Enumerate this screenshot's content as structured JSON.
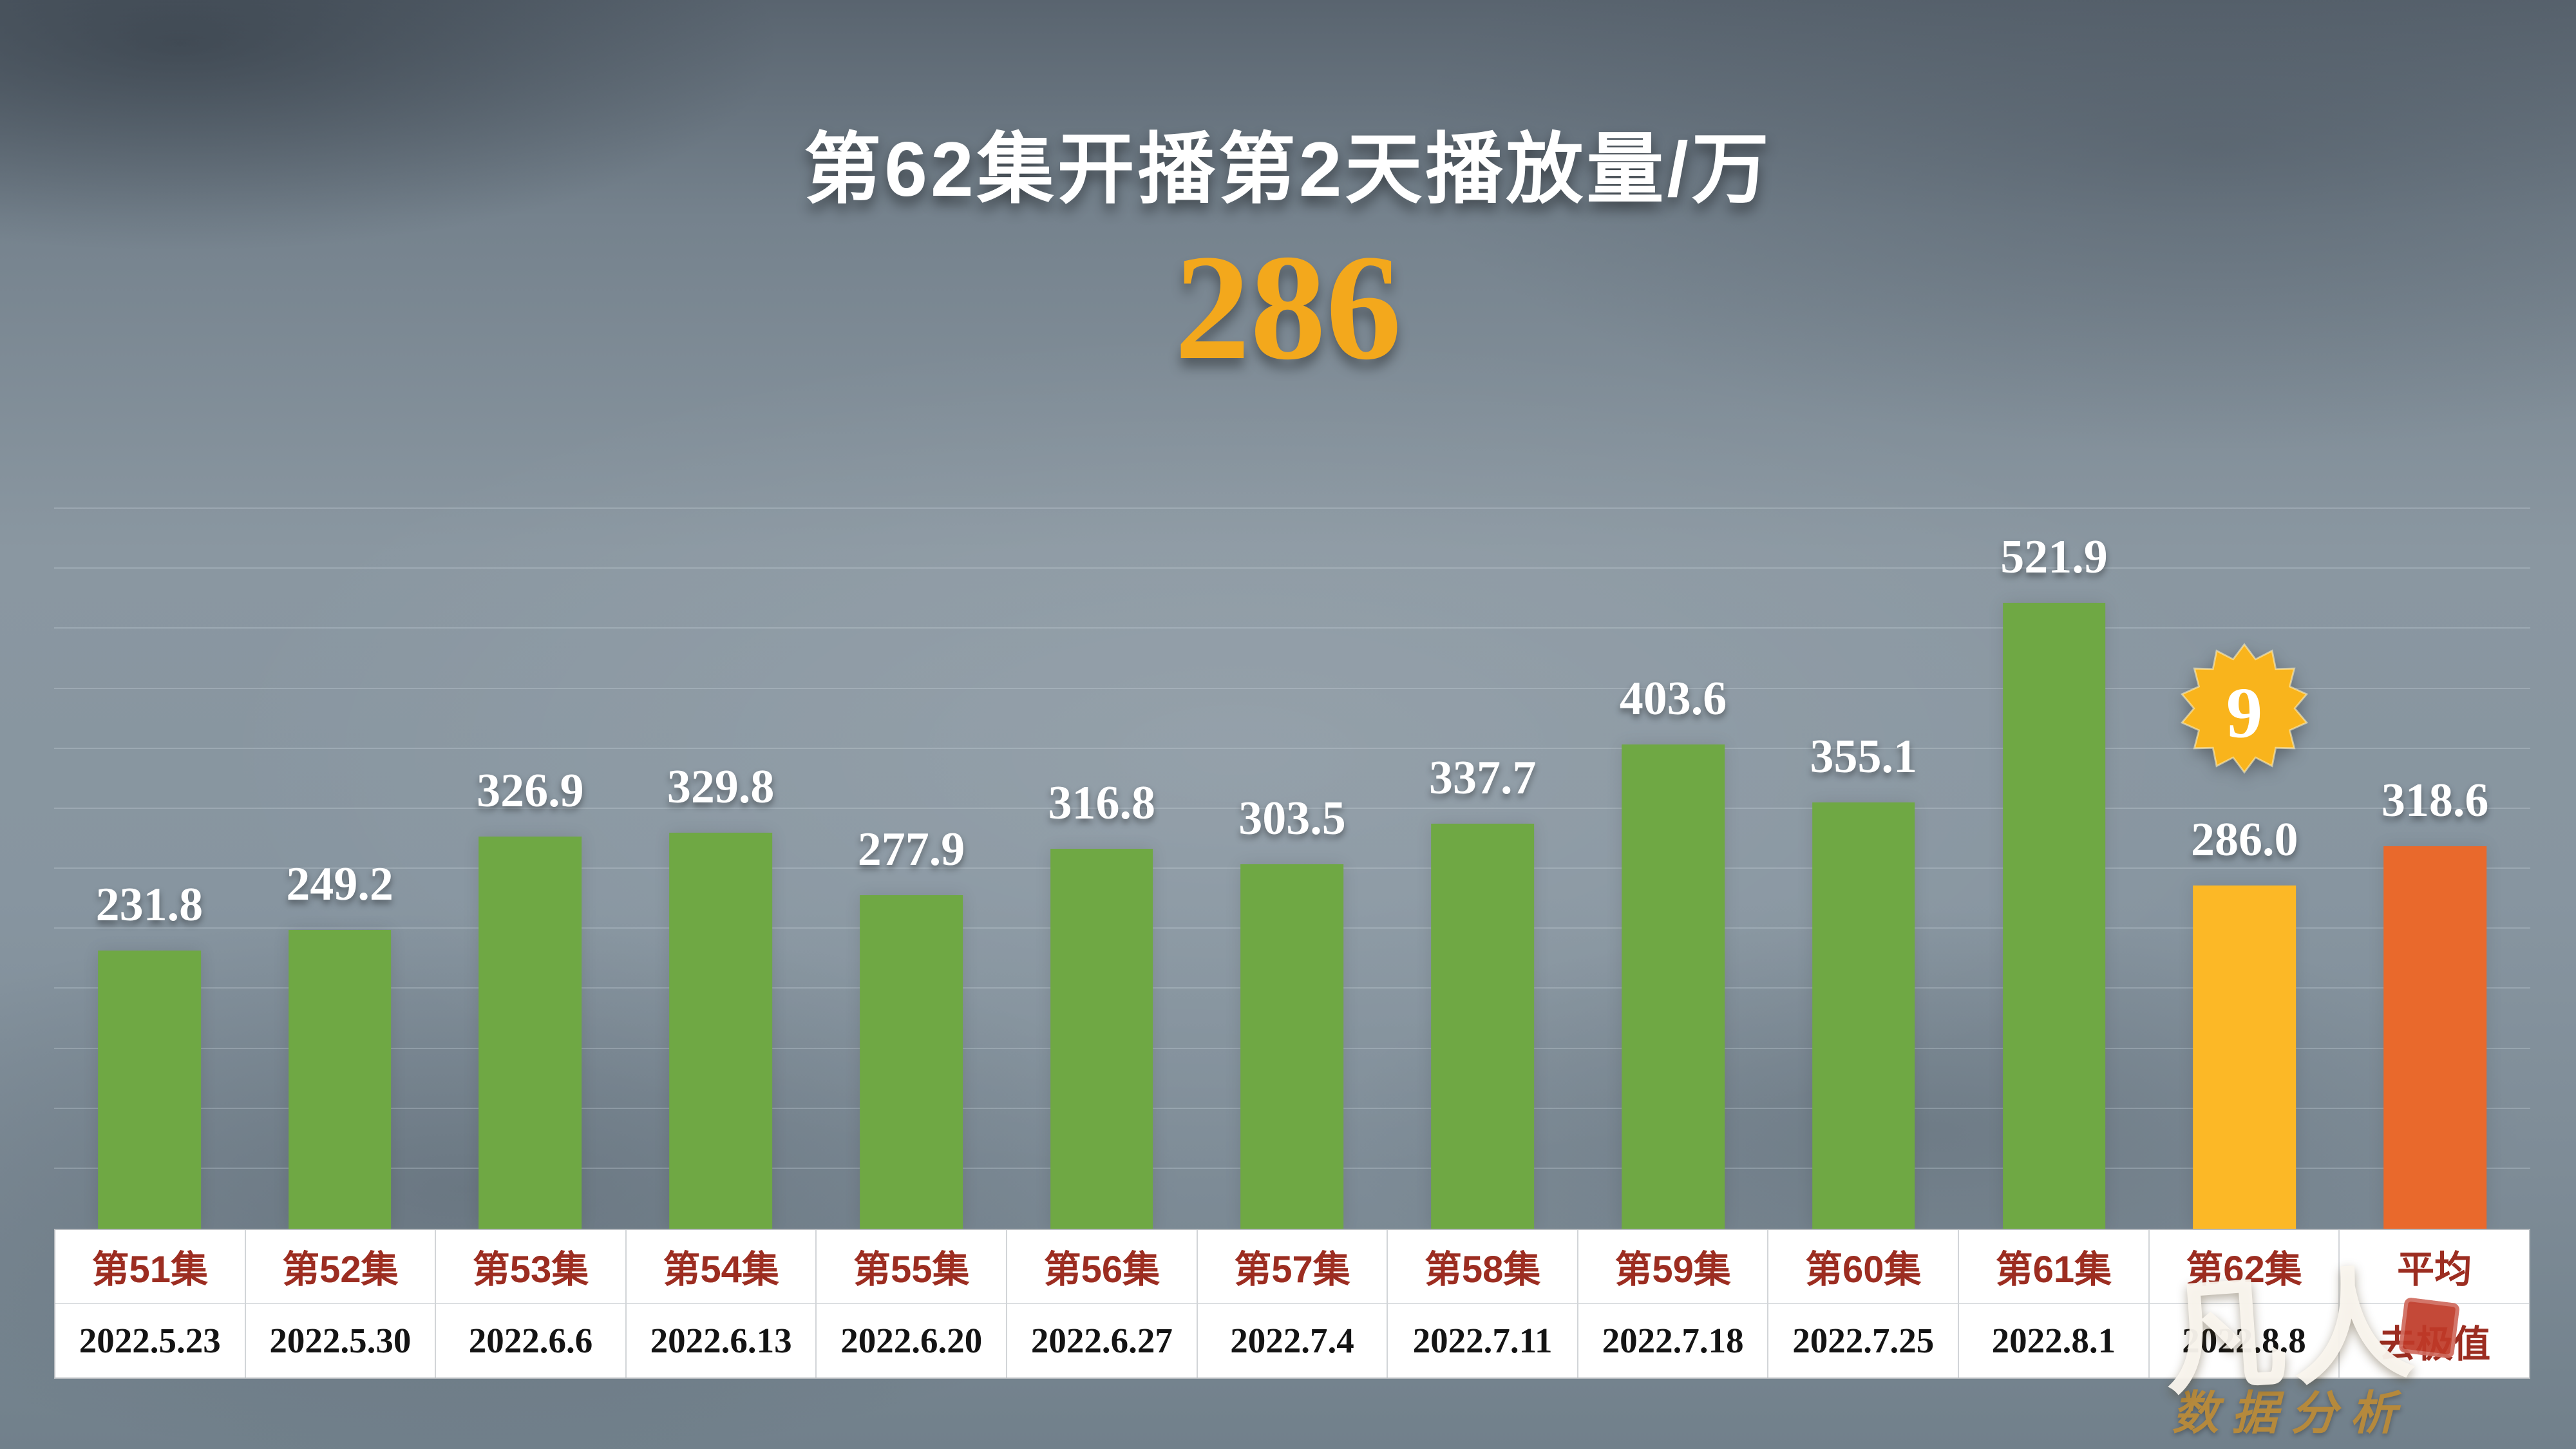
{
  "title": "第62集开播第2天播放量/万",
  "headline_value": "286",
  "colors": {
    "title": "#ffffff",
    "headline": "#f3a81c",
    "value_label": "#ffffff",
    "episode_label": "#9c2d21",
    "date_label": "#141414"
  },
  "chart_data": {
    "type": "bar",
    "title": "第62集开播第2天播放量/万",
    "categories": [
      "第51集",
      "第52集",
      "第53集",
      "第54集",
      "第55集",
      "第56集",
      "第57集",
      "第58集",
      "第59集",
      "第60集",
      "第61集",
      "第62集",
      "平均"
    ],
    "x_sub_labels": [
      "2022.5.23",
      "2022.5.30",
      "2022.6.6",
      "2022.6.13",
      "2022.6.20",
      "2022.6.27",
      "2022.7.4",
      "2022.7.11",
      "2022.7.18",
      "2022.7.25",
      "2022.8.1",
      "2022.8.8",
      "去极值"
    ],
    "values": [
      231.8,
      249.2,
      326.9,
      329.8,
      277.9,
      316.8,
      303.5,
      337.7,
      403.6,
      355.1,
      521.9,
      286.0,
      318.6
    ],
    "value_labels": [
      "231.8",
      "249.2",
      "326.9",
      "329.8",
      "277.9",
      "316.8",
      "303.5",
      "337.7",
      "403.6",
      "355.1",
      "521.9",
      "286.0",
      "318.6"
    ],
    "ylim": [
      0,
      600
    ],
    "grid": true,
    "legend": false,
    "bar_color_default": "#6fa844",
    "highlight": {
      "index": 11,
      "color": "#fcb826",
      "badge": "9",
      "badge_color": "#f9b41c",
      "badge_text_color": "#ffffff"
    },
    "average": {
      "index": 12,
      "color": "#e9692c"
    }
  },
  "watermark": {
    "main": "凡人",
    "sub": "数据分析"
  }
}
